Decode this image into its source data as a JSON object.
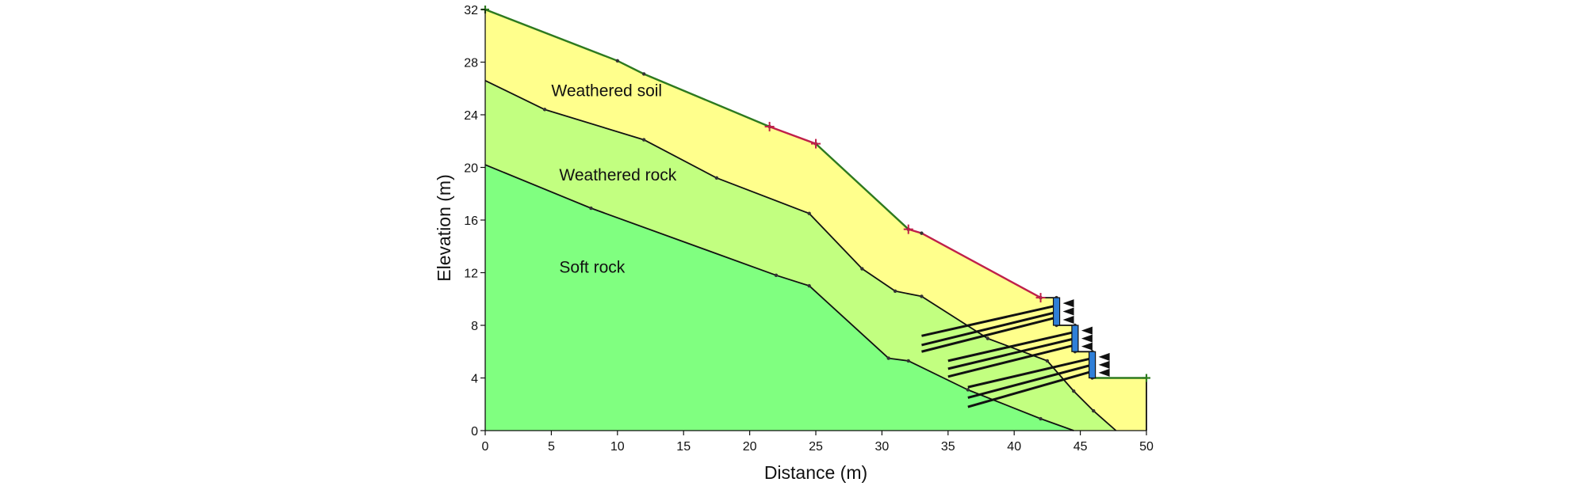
{
  "chart_data": {
    "type": "diagram",
    "xlabel": "Distance (m)",
    "ylabel": "Elevation (m)",
    "xlim": [
      0,
      50
    ],
    "ylim": [
      0,
      32
    ],
    "x_ticks": [
      "0",
      "5",
      "10",
      "15",
      "20",
      "25",
      "30",
      "35",
      "40",
      "45",
      "50"
    ],
    "y_ticks": [
      "0",
      "4",
      "8",
      "12",
      "16",
      "20",
      "24",
      "28",
      "32"
    ],
    "layers": [
      {
        "name": "Weathered soil",
        "color": "#ffff8c",
        "label_at": [
          5,
          25.4
        ]
      },
      {
        "name": "Weathered rock",
        "color": "#c2ff80",
        "label_at": [
          5.6,
          19
        ]
      },
      {
        "name": "Soft rock",
        "color": "#80ff80",
        "label_at": [
          5.6,
          12
        ]
      }
    ],
    "ground_surface": [
      [
        0,
        32
      ],
      [
        10,
        28.1
      ],
      [
        12,
        27.1
      ],
      [
        21.5,
        23.1
      ],
      [
        25,
        21.8
      ],
      [
        32,
        15.3
      ],
      [
        33,
        15
      ],
      [
        42,
        10.1
      ],
      [
        43.2,
        10.1
      ],
      [
        43.2,
        8
      ],
      [
        44.6,
        8
      ],
      [
        44.6,
        6
      ],
      [
        45.9,
        6
      ],
      [
        45.9,
        4
      ],
      [
        50,
        4
      ],
      [
        50,
        0
      ]
    ],
    "weathered_rock_top": [
      [
        0,
        26.6
      ],
      [
        4.5,
        24.4
      ],
      [
        12,
        22.1
      ],
      [
        17.5,
        19.2
      ],
      [
        24.5,
        16.5
      ],
      [
        28.5,
        12.3
      ],
      [
        31,
        10.6
      ],
      [
        33,
        10.2
      ],
      [
        38,
        7
      ],
      [
        42.5,
        5.3
      ],
      [
        44.5,
        3
      ],
      [
        46,
        1.5
      ],
      [
        47.7,
        0
      ]
    ],
    "soft_rock_top": [
      [
        0,
        20.2
      ],
      [
        8,
        16.9
      ],
      [
        22,
        11.8
      ],
      [
        24.5,
        11
      ],
      [
        30.5,
        5.5
      ],
      [
        32,
        5.3
      ],
      [
        36.5,
        3.1
      ],
      [
        42,
        0.9
      ],
      [
        44.5,
        0
      ]
    ],
    "red_segments": [
      [
        [
          21.5,
          23.1
        ],
        [
          25,
          21.8
        ]
      ],
      [
        [
          32,
          15.3
        ],
        [
          33,
          15
        ],
        [
          42,
          10.1
        ]
      ]
    ],
    "walls": [
      [
        43.2,
        8,
        10.1
      ],
      [
        44.6,
        6,
        8
      ],
      [
        45.9,
        4,
        6
      ]
    ],
    "anchors": [
      [
        [
          43.2,
          9.5
        ],
        [
          33,
          7.2
        ]
      ],
      [
        [
          43.2,
          9
        ],
        [
          33,
          6.5
        ]
      ],
      [
        [
          43.2,
          8.6
        ],
        [
          33,
          6
        ]
      ],
      [
        [
          44.6,
          7.5
        ],
        [
          35,
          5.3
        ]
      ],
      [
        [
          44.6,
          7
        ],
        [
          35,
          4.7
        ]
      ],
      [
        [
          44.6,
          6.5
        ],
        [
          35,
          4.1
        ]
      ],
      [
        [
          45.9,
          5.5
        ],
        [
          36.5,
          3.3
        ]
      ],
      [
        [
          45.9,
          5
        ],
        [
          36.5,
          2.5
        ]
      ],
      [
        [
          45.9,
          4.5
        ],
        [
          36.5,
          1.8
        ]
      ]
    ],
    "colors": {
      "soil": "#ffff8c",
      "wrock": "#c2ff80",
      "soft": "#80ff80",
      "wall": "#2f7fd8",
      "green_line": "#2d7a1f",
      "red_line": "#c0204a"
    }
  }
}
